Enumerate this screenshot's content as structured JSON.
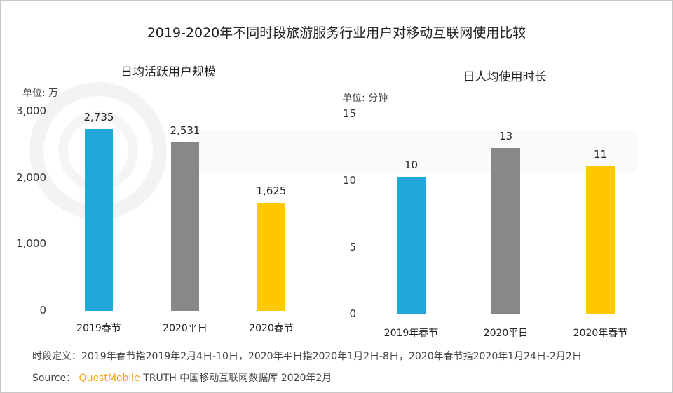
{
  "title": "2019-2020年不同时段旅游服务行业用户对移动互联网使用比较",
  "watermark": "QUEST MOBILE",
  "chart_data": [
    {
      "type": "bar",
      "title": "日均活跃用户规模",
      "unit_label": "单位: 万",
      "categories": [
        "2019春节",
        "2020平日",
        "2020春节"
      ],
      "values": [
        2735,
        2531,
        1625
      ],
      "labels": [
        "2,735",
        "2,531",
        "1,625"
      ],
      "colors": [
        "#22A7DB",
        "#888888",
        "#FFC800"
      ],
      "ylim": [
        0,
        3000
      ],
      "yticks": [
        "0",
        "1,000",
        "2,000",
        "3,000"
      ],
      "grid": false
    },
    {
      "type": "bar",
      "title": "日人均使用时长",
      "unit_label": "单位: 分钟",
      "categories": [
        "2019年春节",
        "2020平日",
        "2020年春节"
      ],
      "values": [
        10.3,
        12.5,
        11.1
      ],
      "labels": [
        "10",
        "13",
        "11"
      ],
      "colors": [
        "#22A7DB",
        "#888888",
        "#FFC800"
      ],
      "ylim": [
        0,
        15
      ],
      "yticks": [
        "0",
        "5",
        "10",
        "15"
      ],
      "grid": false
    }
  ],
  "footer": {
    "definition": "时段定义：2019年春节指2019年2月4日-10日，2020年平日指2020年1月2日-8日，2020年春节指2020年1月24日-2月2日",
    "source_prefix": "Source：",
    "source_brand": "QuestMobile",
    "source_rest": "TRUTH 中国移动互联网数据库 2020年2月"
  }
}
